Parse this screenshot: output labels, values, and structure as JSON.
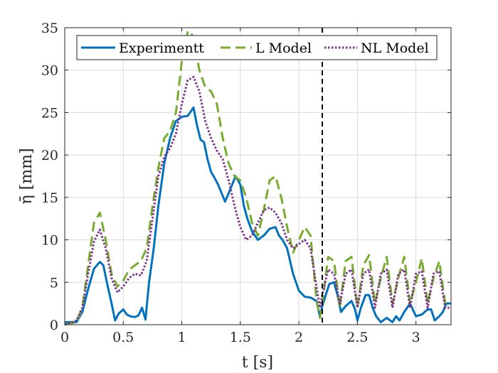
{
  "chart_data": {
    "type": "line",
    "xlabel": "t [s]",
    "ylabel": "η̄ [mm]",
    "xlim": [
      0,
      3.3
    ],
    "ylim": [
      0,
      35
    ],
    "xticks": [
      "0",
      "0.5",
      "1",
      "1.5",
      "2",
      "2.5",
      "3"
    ],
    "yticks": [
      "0",
      "5",
      "10",
      "15",
      "20",
      "25",
      "30",
      "35"
    ],
    "grid": true,
    "legend_position": "top",
    "vline_x": 2.2,
    "series": [
      {
        "name": "Experimentt",
        "color": "#0072BD",
        "style": "solid",
        "x": [
          0,
          0.05,
          0.1,
          0.15,
          0.2,
          0.25,
          0.3,
          0.33,
          0.36,
          0.4,
          0.43,
          0.46,
          0.5,
          0.53,
          0.56,
          0.6,
          0.63,
          0.66,
          0.69,
          0.72,
          0.76,
          0.8,
          0.85,
          0.9,
          0.95,
          1.0,
          1.05,
          1.1,
          1.13,
          1.16,
          1.19,
          1.22,
          1.25,
          1.28,
          1.31,
          1.34,
          1.37,
          1.4,
          1.43,
          1.46,
          1.5,
          1.53,
          1.56,
          1.6,
          1.65,
          1.7,
          1.75,
          1.8,
          1.83,
          1.86,
          1.9,
          1.95,
          2.0,
          2.05,
          2.1,
          2.15,
          2.18,
          2.2,
          2.23,
          2.26,
          2.3,
          2.33,
          2.36,
          2.4,
          2.45,
          2.48,
          2.5,
          2.53,
          2.57,
          2.6,
          2.63,
          2.66,
          2.7,
          2.75,
          2.8,
          2.83,
          2.86,
          2.9,
          2.95,
          3.0,
          3.05,
          3.1,
          3.13,
          3.16,
          3.2,
          3.23,
          3.26,
          3.3
        ],
        "y": [
          0.3,
          0.3,
          0.3,
          1.5,
          4.2,
          6.6,
          7.4,
          7.0,
          5.0,
          2.5,
          0.5,
          1.3,
          1.8,
          1.2,
          1.0,
          0.9,
          1.1,
          2.0,
          0.6,
          5.0,
          9.0,
          14.0,
          19.0,
          22.0,
          24.0,
          24.5,
          24.6,
          25.6,
          23.5,
          21.8,
          21.5,
          19.5,
          18.0,
          17.3,
          16.5,
          15.5,
          14.5,
          15.5,
          16.5,
          17.5,
          16.5,
          14.0,
          12.5,
          11.0,
          10.0,
          10.5,
          11.3,
          11.5,
          10.5,
          10.0,
          9.0,
          6.0,
          4.0,
          3.3,
          3.2,
          2.8,
          1.0,
          2.2,
          3.5,
          4.8,
          5.0,
          3.5,
          1.5,
          2.2,
          2.8,
          1.8,
          0.5,
          2.0,
          3.5,
          3.5,
          2.0,
          1.0,
          0.3,
          0.8,
          0.3,
          1.0,
          0.5,
          1.5,
          2.5,
          1.0,
          1.2,
          1.8,
          1.8,
          0.5,
          1.0,
          1.5,
          2.5,
          2.5
        ]
      },
      {
        "name": "L Model",
        "color": "#77AC30",
        "style": "dashed",
        "x": [
          0,
          0.1,
          0.15,
          0.2,
          0.25,
          0.3,
          0.35,
          0.4,
          0.45,
          0.5,
          0.55,
          0.6,
          0.65,
          0.7,
          0.75,
          0.8,
          0.85,
          0.9,
          0.95,
          1.0,
          1.05,
          1.08,
          1.11,
          1.15,
          1.2,
          1.25,
          1.3,
          1.35,
          1.4,
          1.45,
          1.5,
          1.55,
          1.6,
          1.65,
          1.7,
          1.75,
          1.8,
          1.85,
          1.9,
          1.95,
          2.0,
          2.05,
          2.1,
          2.15,
          2.18,
          2.2,
          2.25,
          2.3,
          2.35,
          2.4,
          2.45,
          2.5,
          2.55,
          2.6,
          2.65,
          2.7,
          2.75,
          2.8,
          2.85,
          2.9,
          2.95,
          3.0,
          3.05,
          3.1,
          3.15,
          3.2,
          3.25,
          3.3
        ],
        "y": [
          0,
          0.3,
          2.0,
          7.0,
          12.0,
          13.2,
          10.0,
          6.0,
          4.5,
          5.2,
          6.5,
          7.0,
          7.5,
          9.0,
          14.0,
          18.5,
          22.0,
          22.8,
          25.0,
          31.0,
          34.5,
          34.5,
          33.0,
          30.0,
          28.0,
          27.5,
          26.0,
          22.0,
          19.0,
          17.5,
          17.0,
          15.0,
          12.0,
          10.5,
          13.5,
          17.0,
          17.5,
          15.0,
          11.5,
          8.5,
          10.0,
          11.5,
          10.5,
          3.0,
          0.8,
          2.5,
          8.0,
          7.5,
          2.0,
          7.5,
          8.0,
          2.0,
          7.0,
          8.2,
          2.5,
          5.5,
          8.0,
          2.5,
          5.5,
          8.0,
          2.5,
          5.0,
          7.8,
          2.5,
          5.5,
          7.5,
          2.5,
          2.5
        ]
      },
      {
        "name": "NL Model",
        "color": "#7E2F8E",
        "style": "dotted",
        "x": [
          0,
          0.1,
          0.15,
          0.2,
          0.25,
          0.3,
          0.35,
          0.4,
          0.45,
          0.5,
          0.55,
          0.6,
          0.65,
          0.7,
          0.75,
          0.8,
          0.85,
          0.9,
          0.95,
          1.0,
          1.05,
          1.1,
          1.15,
          1.2,
          1.25,
          1.3,
          1.35,
          1.4,
          1.45,
          1.5,
          1.55,
          1.6,
          1.65,
          1.7,
          1.75,
          1.8,
          1.85,
          1.9,
          1.95,
          2.0,
          2.05,
          2.1,
          2.15,
          2.18,
          2.2,
          2.25,
          2.3,
          2.35,
          2.4,
          2.45,
          2.5,
          2.55,
          2.6,
          2.65,
          2.7,
          2.75,
          2.8,
          2.85,
          2.9,
          2.95,
          3.0,
          3.05,
          3.1,
          3.15,
          3.2,
          3.25,
          3.3
        ],
        "y": [
          0,
          0.5,
          2.0,
          6.0,
          9.8,
          11.2,
          9.0,
          5.5,
          3.8,
          4.5,
          5.5,
          6.0,
          5.8,
          7.5,
          12.5,
          17.5,
          19.8,
          20.8,
          22.5,
          26.0,
          28.8,
          29.2,
          27.5,
          24.0,
          22.0,
          20.5,
          19.5,
          17.0,
          14.0,
          11.5,
          10.0,
          10.5,
          12.0,
          13.5,
          13.8,
          13.2,
          12.0,
          10.0,
          9.0,
          9.5,
          10.0,
          9.0,
          4.5,
          2.0,
          3.5,
          6.5,
          6.0,
          2.5,
          6.0,
          6.5,
          2.0,
          6.0,
          6.5,
          2.0,
          6.0,
          6.5,
          2.0,
          6.0,
          6.5,
          2.0,
          6.0,
          6.3,
          2.0,
          6.0,
          6.3,
          2.0,
          2.0
        ]
      }
    ]
  }
}
